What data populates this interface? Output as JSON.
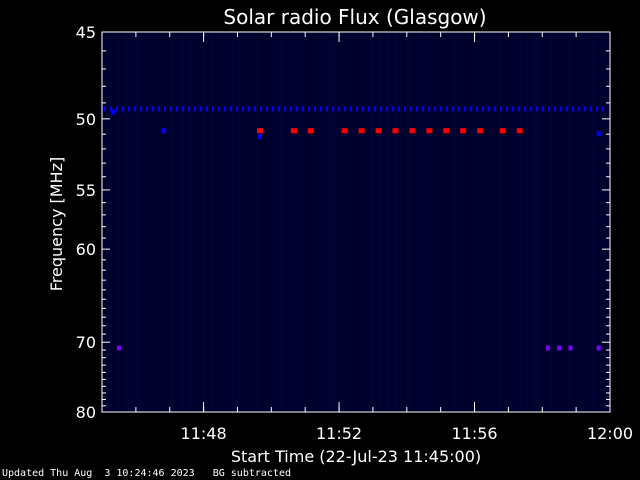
{
  "chart_data": {
    "type": "heatmap",
    "title": "Solar radio Flux (Glasgow)",
    "xlabel": "Start Time (22-Jul-23 11:45:00)",
    "ylabel": "Frequency [MHz]",
    "x_unit": "time (HH:MM)",
    "xlim": [
      "11:45",
      "12:00"
    ],
    "xticks": [
      "11:48",
      "11:52",
      "11:56",
      "12:00"
    ],
    "ylim": [
      45,
      80
    ],
    "yticks": [
      45,
      50,
      55,
      60,
      70,
      80
    ],
    "y_scale": "reciprocal",
    "background_color": "#00002a",
    "colors": {
      "low": "#0000ff",
      "mid": "#7a00ff",
      "high": "#ff0000"
    },
    "points": [
      {
        "t": "11:45:20",
        "f": 49.6,
        "level": "low"
      },
      {
        "t": "11:46:50",
        "f": 50.8,
        "level": "low"
      },
      {
        "t": "11:49:40",
        "f": 50.8,
        "level": "high"
      },
      {
        "t": "11:49:40",
        "f": 51.2,
        "level": "low"
      },
      {
        "t": "11:50:40",
        "f": 50.8,
        "level": "high"
      },
      {
        "t": "11:51:10",
        "f": 50.8,
        "level": "high"
      },
      {
        "t": "11:52:10",
        "f": 50.8,
        "level": "high"
      },
      {
        "t": "11:52:40",
        "f": 50.8,
        "level": "high"
      },
      {
        "t": "11:53:10",
        "f": 50.8,
        "level": "high"
      },
      {
        "t": "11:53:40",
        "f": 50.8,
        "level": "high"
      },
      {
        "t": "11:54:10",
        "f": 50.8,
        "level": "high"
      },
      {
        "t": "11:54:40",
        "f": 50.8,
        "level": "high"
      },
      {
        "t": "11:55:10",
        "f": 50.8,
        "level": "high"
      },
      {
        "t": "11:55:40",
        "f": 50.8,
        "level": "high"
      },
      {
        "t": "11:56:10",
        "f": 50.8,
        "level": "high"
      },
      {
        "t": "11:56:50",
        "f": 50.8,
        "level": "high"
      },
      {
        "t": "11:57:20",
        "f": 50.8,
        "level": "high"
      },
      {
        "t": "11:59:40",
        "f": 51.0,
        "level": "low"
      },
      {
        "t": "11:45:30",
        "f": 70.8,
        "level": "mid"
      },
      {
        "t": "11:58:10",
        "f": 70.8,
        "level": "mid"
      },
      {
        "t": "11:58:30",
        "f": 70.8,
        "level": "mid"
      },
      {
        "t": "11:58:50",
        "f": 70.8,
        "level": "mid"
      },
      {
        "t": "11:59:40",
        "f": 70.8,
        "level": "mid"
      }
    ],
    "continuous_band": {
      "f": 49.4,
      "level": "low",
      "from": "11:45:00",
      "to": "12:00:00"
    },
    "grid": false,
    "legend": "none"
  },
  "footer": {
    "updated": "Updated Thu Aug  3 10:24:46 2023",
    "bg_note": "BG subtracted"
  }
}
